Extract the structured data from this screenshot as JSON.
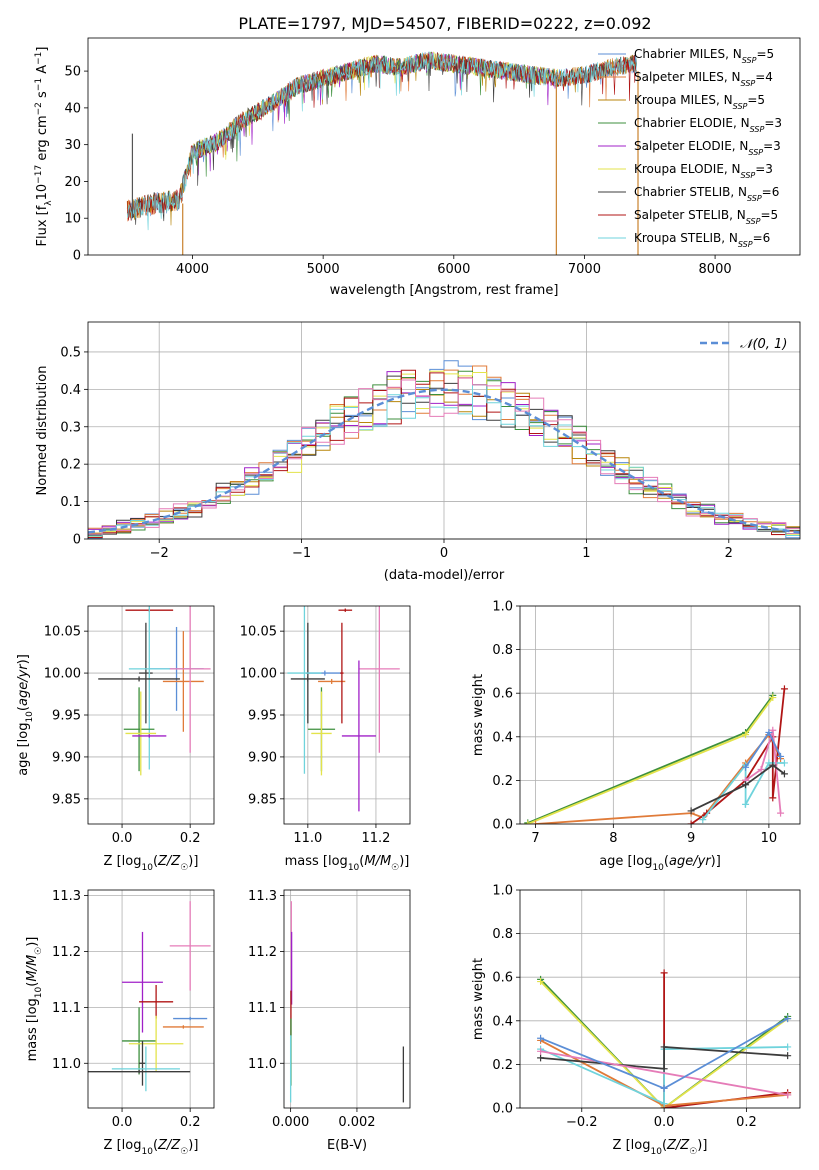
{
  "figure_title": "PLATE=1797, MJD=54507, FIBERID=0222, z=0.092",
  "colors": {
    "Chabrier MILES": "#5b8ed6",
    "Salpeter MILES": "#e07b39",
    "Kroupa MILES": "#b8860b",
    "Chabrier ELODIE": "#3d8f3d",
    "Salpeter ELODIE": "#a020c8",
    "Kroupa ELODIE": "#e3e34b",
    "Chabrier STELIB": "#3c3c3c",
    "Salpeter STELIB": "#b01515",
    "Kroupa STELIB": "#6fd3dc",
    "pink": "#e57cb8",
    "normal": "#5b8ed6"
  },
  "chart_data": [
    {
      "id": "spectrum",
      "type": "line",
      "xlabel": "wavelength [Angstrom, rest frame]",
      "ylabel": "Flux [f_λ10^-17 erg cm^-2 s^-1 A^-1]",
      "xlim": [
        3200,
        8650
      ],
      "ylim": [
        0,
        59
      ],
      "xticks": [
        4000,
        5000,
        6000,
        7000,
        8000
      ],
      "yticks": [
        0,
        10,
        20,
        30,
        40,
        50
      ],
      "grid": false,
      "legend_position": "top-right",
      "legend": [
        {
          "label": "Chabrier MILES, N",
          "sub": "SSP",
          "suffix": "=5",
          "color_key": "Chabrier MILES"
        },
        {
          "label": "Salpeter MILES, N",
          "sub": "SSP",
          "suffix": "=4",
          "color_key": "Salpeter MILES"
        },
        {
          "label": "Kroupa MILES, N",
          "sub": "SSP",
          "suffix": "=5",
          "color_key": "Kroupa MILES"
        },
        {
          "label": "Chabrier ELODIE, N",
          "sub": "SSP",
          "suffix": "=3",
          "color_key": "Chabrier ELODIE"
        },
        {
          "label": "Salpeter ELODIE, N",
          "sub": "SSP",
          "suffix": "=3",
          "color_key": "Salpeter ELODIE"
        },
        {
          "label": "Kroupa ELODIE, N",
          "sub": "SSP",
          "suffix": "=3",
          "color_key": "Kroupa ELODIE"
        },
        {
          "label": "Chabrier STELIB, N",
          "sub": "SSP",
          "suffix": "=6",
          "color_key": "Chabrier STELIB"
        },
        {
          "label": "Salpeter STELIB, N",
          "sub": "SSP",
          "suffix": "=5",
          "color_key": "Salpeter STELIB"
        },
        {
          "label": "Kroupa STELIB, N",
          "sub": "SSP",
          "suffix": "=6",
          "color_key": "Kroupa STELIB"
        }
      ],
      "continuum": {
        "x": [
          3500,
          3700,
          3900,
          4000,
          4200,
          4400,
          4600,
          4800,
          5000,
          5200,
          5400,
          5600,
          5800,
          6000,
          6200,
          6400,
          6600,
          6800,
          7000,
          7200,
          7400
        ],
        "y": [
          12,
          14,
          15,
          28,
          31,
          37,
          41,
          46,
          48,
          50,
          52,
          51,
          53,
          52,
          51,
          50,
          49,
          48,
          49,
          51,
          52
        ]
      },
      "spikes": [
        {
          "x": 3540,
          "from": 10,
          "to": 33
        },
        {
          "x": 3925,
          "from": 14,
          "to": 0
        },
        {
          "x": 6785,
          "from": 48,
          "to": 0
        },
        {
          "x": 7410,
          "from": 50,
          "to": 0
        }
      ]
    },
    {
      "id": "residuals",
      "type": "area",
      "xlabel": "(data-model)/error",
      "ylabel": "Normed distribution",
      "xlim": [
        -2.5,
        2.5
      ],
      "ylim": [
        0,
        0.58
      ],
      "xticks": [
        -2,
        -1,
        0,
        1,
        2
      ],
      "yticks": [
        0.0,
        0.1,
        0.2,
        0.3,
        0.4,
        0.5
      ],
      "grid": true,
      "legend_position": "top-right",
      "legend": [
        {
          "label": "𝒩(0, 1)",
          "color_key": "normal"
        }
      ],
      "bin_width": 0.1,
      "bin_start": -2.5
    },
    {
      "id": "age_vs_Z",
      "type": "scatter",
      "xlabel": "Z [log10(Z/Z☉)]",
      "ylabel": "age  [log10(age/yr)]",
      "xlim": [
        -0.1,
        0.27
      ],
      "ylim": [
        9.82,
        10.08
      ],
      "xticks": [
        0.0,
        0.2
      ],
      "yticks": [
        9.85,
        9.9,
        9.95,
        10.0,
        10.05
      ],
      "grid": true,
      "points": [
        {
          "color_key": "Salpeter STELIB",
          "x": 0.08,
          "xerr": 0.07,
          "y": 10.075,
          "yerr": 0.002
        },
        {
          "color_key": "Chabrier STELIB",
          "x": 0.07,
          "xerr": 0.02,
          "y": 10.0,
          "yerr": 0.06
        },
        {
          "color_key": "Chabrier MILES",
          "x": 0.16,
          "xerr": 0.08,
          "y": 10.005,
          "yerr": 0.05
        },
        {
          "color_key": "Salpeter MILES",
          "x": 0.18,
          "xerr": 0.06,
          "y": 9.99,
          "yerr": 0.06
        },
        {
          "color_key": "pink",
          "x": 0.2,
          "xerr": 0.06,
          "y": 10.005,
          "yerr": 0.1
        },
        {
          "color_key": "Kroupa STELIB",
          "x": 0.08,
          "xerr": 0.06,
          "y": 10.005,
          "yerr": 0.12
        },
        {
          "color_key": "Chabrier STELIB",
          "x": 0.05,
          "xerr": 0.12,
          "y": 9.993,
          "yerr": 0.003
        },
        {
          "color_key": "Chabrier ELODIE",
          "x": 0.05,
          "xerr": 0.045,
          "y": 9.933,
          "yerr": 0.05
        },
        {
          "color_key": "Kroupa ELODIE",
          "x": 0.055,
          "xerr": 0.045,
          "y": 9.928,
          "yerr": 0.05
        },
        {
          "color_key": "Salpeter ELODIE",
          "x": 0.08,
          "xerr": 0.05,
          "y": 9.925,
          "yerr": 0.002
        }
      ]
    },
    {
      "id": "age_vs_mass",
      "type": "scatter",
      "xlabel": "mass [log10(M/M☉)]",
      "ylabel": "",
      "xlim": [
        10.93,
        11.3
      ],
      "ylim": [
        9.82,
        10.08
      ],
      "xticks": [
        11.0,
        11.2
      ],
      "yticks": [
        9.85,
        9.9,
        9.95,
        10.0,
        10.05
      ],
      "grid": true,
      "points": [
        {
          "color_key": "Salpeter STELIB",
          "x": 11.11,
          "xerr": 0.02,
          "y": 10.075,
          "yerr": 0.002
        },
        {
          "color_key": "Chabrier STELIB",
          "x": 11.0,
          "xerr": 0.005,
          "y": 10.0,
          "yerr": 0.06
        },
        {
          "color_key": "Chabrier MILES",
          "x": 11.05,
          "xerr": 0.05,
          "y": 10.0,
          "yerr": 0.003
        },
        {
          "color_key": "Salpeter MILES",
          "x": 11.07,
          "xerr": 0.04,
          "y": 9.99,
          "yerr": 0.003
        },
        {
          "color_key": "pink",
          "x": 11.21,
          "xerr": 0.06,
          "y": 10.005,
          "yerr": 0.1
        },
        {
          "color_key": "Kroupa STELIB",
          "x": 10.99,
          "xerr": 0.05,
          "y": 10.0,
          "yerr": 0.12
        },
        {
          "color_key": "Chabrier STELIB",
          "x": 11.0,
          "xerr": 0.05,
          "y": 9.993,
          "yerr": 0.003
        },
        {
          "color_key": "Salpeter STELIB",
          "x": 11.1,
          "xerr": 0.005,
          "y": 10.0,
          "yerr": 0.06
        },
        {
          "color_key": "Chabrier ELODIE",
          "x": 11.04,
          "xerr": 0.04,
          "y": 9.933,
          "yerr": 0.05
        },
        {
          "color_key": "Kroupa ELODIE",
          "x": 11.04,
          "xerr": 0.03,
          "y": 9.928,
          "yerr": 0.05
        },
        {
          "color_key": "Salpeter ELODIE",
          "x": 11.15,
          "xerr": 0.05,
          "y": 9.925,
          "yerr": 0.09
        }
      ]
    },
    {
      "id": "mass_weight_vs_age",
      "type": "line",
      "xlabel": "age  [log10(age/yr)]",
      "ylabel": "mass weight",
      "xlim": [
        6.8,
        10.4
      ],
      "ylim": [
        0,
        1.0
      ],
      "xticks": [
        7,
        8,
        9,
        10
      ],
      "yticks": [
        0.0,
        0.2,
        0.4,
        0.6,
        0.8,
        1.0
      ],
      "grid": true,
      "series": [
        {
          "color_key": "Chabrier ELODIE",
          "x": [
            6.9,
            9.7,
            10.05
          ],
          "y": [
            0.005,
            0.42,
            0.59
          ]
        },
        {
          "color_key": "Kroupa ELODIE",
          "x": [
            6.9,
            9.7,
            10.05
          ],
          "y": [
            0.0,
            0.41,
            0.58
          ]
        },
        {
          "color_key": "Salpeter MILES",
          "x": [
            7.0,
            9.0,
            9.15,
            9.7,
            10.0,
            10.15
          ],
          "y": [
            0.0,
            0.05,
            0.03,
            0.28,
            0.41,
            0.3
          ]
        },
        {
          "color_key": "Salpeter STELIB",
          "x": [
            9.0,
            9.2,
            9.7,
            10.05,
            10.05,
            10.2
          ],
          "y": [
            0.0,
            0.05,
            0.2,
            0.4,
            0.12,
            0.62
          ]
        },
        {
          "color_key": "Kroupa STELIB",
          "x": [
            9.15,
            9.7,
            9.7,
            10.0,
            10.2
          ],
          "y": [
            0.02,
            0.27,
            0.09,
            0.28,
            0.28
          ]
        },
        {
          "color_key": "pink",
          "x": [
            9.7,
            9.9,
            10.05,
            10.15
          ],
          "y": [
            0.2,
            0.25,
            0.43,
            0.05
          ]
        },
        {
          "color_key": "Chabrier STELIB",
          "x": [
            9.0,
            9.7,
            10.05,
            10.2
          ],
          "y": [
            0.06,
            0.18,
            0.27,
            0.23
          ]
        },
        {
          "color_key": "Chabrier MILES",
          "x": [
            9.7,
            10.0,
            10.15
          ],
          "y": [
            0.26,
            0.42,
            0.31
          ]
        }
      ]
    },
    {
      "id": "mass_vs_Z",
      "type": "scatter",
      "xlabel": "Z [log10(Z/Z☉)]",
      "ylabel": "mass [log10(M/M☉)]",
      "xlim": [
        -0.1,
        0.27
      ],
      "ylim": [
        10.92,
        11.31
      ],
      "xticks": [
        0.0,
        0.2
      ],
      "yticks": [
        11.0,
        11.1,
        11.2,
        11.3
      ],
      "grid": true,
      "points": [
        {
          "color_key": "pink",
          "x": 0.2,
          "xerr": 0.06,
          "y": 11.21,
          "yerr": 0.08
        },
        {
          "color_key": "Salpeter ELODIE",
          "x": 0.06,
          "xerr": 0.06,
          "y": 11.145,
          "yerr": 0.09
        },
        {
          "color_key": "Salpeter STELIB",
          "x": 0.1,
          "xerr": 0.05,
          "y": 11.11,
          "yerr": 0.03
        },
        {
          "color_key": "Chabrier MILES",
          "x": 0.2,
          "xerr": 0.05,
          "y": 11.08,
          "yerr": 0.003
        },
        {
          "color_key": "Salpeter MILES",
          "x": 0.18,
          "xerr": 0.06,
          "y": 11.065,
          "yerr": 0.003
        },
        {
          "color_key": "Chabrier ELODIE",
          "x": 0.05,
          "xerr": 0.05,
          "y": 11.04,
          "yerr": 0.06
        },
        {
          "color_key": "Kroupa ELODIE",
          "x": 0.1,
          "xerr": 0.08,
          "y": 11.035,
          "yerr": 0.05
        },
        {
          "color_key": "Chabrier STELIB",
          "x": 0.06,
          "xerr": 0.01,
          "y": 11.0,
          "yerr": 0.04
        },
        {
          "color_key": "Kroupa STELIB",
          "x": 0.07,
          "xerr": 0.1,
          "y": 10.99,
          "yerr": 0.04
        },
        {
          "color_key": "Chabrier STELIB",
          "x": 0.05,
          "xerr": 0.15,
          "y": 10.985,
          "yerr": 0.003
        }
      ]
    },
    {
      "id": "mass_vs_ebv",
      "type": "scatter",
      "xlabel": "E(B-V)",
      "ylabel": "",
      "xlim": [
        -0.0002,
        0.0036
      ],
      "ylim": [
        10.92,
        11.31
      ],
      "xticks": [
        0.0,
        0.002
      ],
      "yticks": [
        11.0,
        11.1,
        11.2,
        11.3
      ],
      "grid": true,
      "points": [
        {
          "color_key": "pink",
          "x": 2e-05,
          "xerr": 0.0,
          "y": 11.21,
          "yerr": 0.08
        },
        {
          "color_key": "Salpeter ELODIE",
          "x": 3e-05,
          "xerr": 0.0,
          "y": 11.17,
          "yerr": 0.065
        },
        {
          "color_key": "Salpeter STELIB",
          "x": 1e-05,
          "xerr": 0.0,
          "y": 11.09,
          "yerr": 0.04
        },
        {
          "color_key": "Chabrier ELODIE",
          "x": 1e-05,
          "xerr": 0.0,
          "y": 11.02,
          "yerr": 0.06
        },
        {
          "color_key": "Kroupa STELIB",
          "x": 0.0,
          "xerr": 0.0,
          "y": 10.99,
          "yerr": 0.06
        },
        {
          "color_key": "Chabrier STELIB",
          "x": 0.0034,
          "xerr": 0.0,
          "y": 10.98,
          "yerr": 0.05
        }
      ]
    },
    {
      "id": "mass_weight_vs_Z",
      "type": "line",
      "xlabel": "Z [log10(Z/Z☉)]",
      "ylabel": "mass weight",
      "xlim": [
        -0.35,
        0.33
      ],
      "ylim": [
        0,
        1.0
      ],
      "xticks": [
        -0.2,
        0.0,
        0.2
      ],
      "yticks": [
        0.0,
        0.2,
        0.4,
        0.6,
        0.8,
        1.0
      ],
      "grid": true,
      "series": [
        {
          "color_key": "Chabrier ELODIE",
          "x": [
            -0.3,
            0.0,
            0.3
          ],
          "y": [
            0.59,
            0.0,
            0.42
          ]
        },
        {
          "color_key": "Kroupa ELODIE",
          "x": [
            -0.3,
            0.0,
            0.3
          ],
          "y": [
            0.58,
            0.0,
            0.41
          ]
        },
        {
          "color_key": "Salpeter STELIB",
          "x": [
            0.0,
            0.0,
            0.3
          ],
          "y": [
            0.62,
            0.0,
            0.07
          ]
        },
        {
          "color_key": "Salpeter MILES",
          "x": [
            -0.3,
            0.0,
            0.3
          ],
          "y": [
            0.31,
            0.01,
            0.06
          ]
        },
        {
          "color_key": "Kroupa STELIB",
          "x": [
            -0.3,
            0.0,
            0.0,
            0.3
          ],
          "y": [
            0.27,
            0.02,
            0.27,
            0.28
          ]
        },
        {
          "color_key": "Chabrier STELIB",
          "x": [
            -0.3,
            0.0,
            0.0,
            0.3
          ],
          "y": [
            0.23,
            0.18,
            0.28,
            0.24
          ]
        },
        {
          "color_key": "pink",
          "x": [
            -0.3,
            0.3
          ],
          "y": [
            0.26,
            0.06
          ]
        },
        {
          "color_key": "Chabrier MILES",
          "x": [
            -0.3,
            0.0,
            0.3
          ],
          "y": [
            0.32,
            0.09,
            0.41
          ]
        }
      ]
    }
  ]
}
